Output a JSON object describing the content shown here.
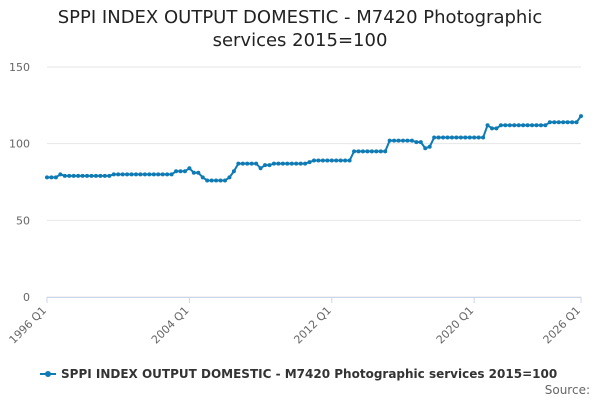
{
  "chart_data": {
    "type": "line",
    "title": "SPPI INDEX OUTPUT DOMESTIC - M7420 Photographic services 2015=100",
    "source": "Source:",
    "categories": [
      "1996 Q1",
      null,
      null,
      null,
      null,
      null,
      null,
      null,
      null,
      null,
      null,
      null,
      null,
      null,
      null,
      null,
      null,
      null,
      null,
      null,
      null,
      null,
      null,
      null,
      null,
      null,
      null,
      null,
      null,
      null,
      null,
      null,
      "2004 Q1",
      null,
      null,
      null,
      null,
      null,
      null,
      null,
      null,
      null,
      null,
      null,
      null,
      null,
      null,
      null,
      null,
      null,
      null,
      null,
      null,
      null,
      null,
      null,
      null,
      null,
      null,
      null,
      null,
      null,
      null,
      null,
      "2012 Q1",
      null,
      null,
      null,
      null,
      null,
      null,
      null,
      null,
      null,
      null,
      null,
      null,
      null,
      null,
      null,
      null,
      null,
      null,
      null,
      null,
      null,
      null,
      null,
      null,
      null,
      null,
      null,
      null,
      null,
      null,
      null,
      "2020 Q1",
      null,
      null,
      null,
      null,
      null,
      null,
      null,
      null,
      null,
      null,
      null,
      null,
      null,
      null,
      null,
      null,
      null,
      null,
      null,
      null,
      null,
      null,
      null,
      "2026 Q1"
    ],
    "series": [
      {
        "name": "SPPI INDEX OUTPUT DOMESTIC - M7420 Photographic services 2015=100",
        "color": "#0f7bb5",
        "values": [
          78,
          78,
          78,
          80,
          79,
          79,
          79,
          79,
          79,
          79,
          79,
          79,
          79,
          79,
          79,
          80,
          80,
          80,
          80,
          80,
          80,
          80,
          80,
          80,
          80,
          80,
          80,
          80,
          80,
          82,
          82,
          82,
          84,
          81,
          81,
          78,
          76,
          76,
          76,
          76,
          76,
          78,
          82,
          87,
          87,
          87,
          87,
          87,
          84,
          86,
          86,
          87,
          87,
          87,
          87,
          87,
          87,
          87,
          87,
          88,
          89,
          89,
          89,
          89,
          89,
          89,
          89,
          89,
          89,
          95,
          95,
          95,
          95,
          95,
          95,
          95,
          95,
          102,
          102,
          102,
          102,
          102,
          102,
          101,
          101,
          97,
          98,
          104,
          104,
          104,
          104,
          104,
          104,
          104,
          104,
          104,
          104,
          104,
          104,
          112,
          110,
          110,
          112,
          112,
          112,
          112,
          112,
          112,
          112,
          112,
          112,
          112,
          112,
          114,
          114,
          114,
          114,
          114,
          114,
          114,
          118
        ]
      }
    ],
    "ylim": [
      0,
      150
    ],
    "yticks": [
      0,
      50,
      100,
      150
    ],
    "grid": true,
    "legend": "bottom"
  }
}
